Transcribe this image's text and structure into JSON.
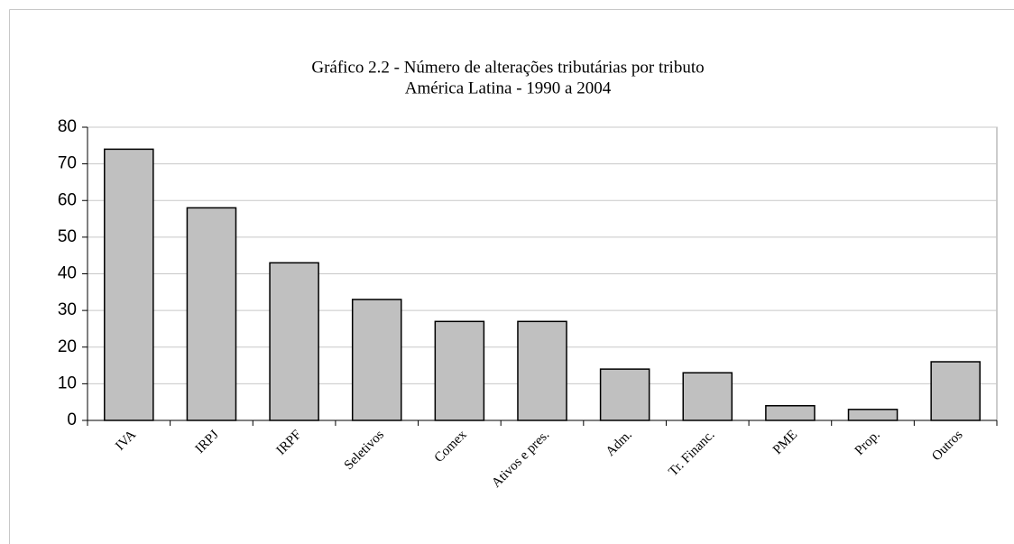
{
  "chart_data": {
    "type": "bar",
    "title": "Gráfico 2.2 - Número de alterações tributárias por tributo",
    "subtitle": "América Latina - 1990 a 2004",
    "categories": [
      "IVA",
      "IRPJ",
      "IRPF",
      "Seletivos",
      "Comex",
      "Ativos e pres.",
      "Adm.",
      "Tr. Financ.",
      "PME",
      "Prop.",
      "Outros"
    ],
    "values": [
      74,
      58,
      43,
      33,
      27,
      27,
      14,
      13,
      4,
      3,
      16
    ],
    "color": "#c0c0c0",
    "ylim": [
      0,
      80
    ],
    "yticks": [
      0,
      10,
      20,
      30,
      40,
      50,
      60,
      70,
      80
    ],
    "grid": true
  }
}
